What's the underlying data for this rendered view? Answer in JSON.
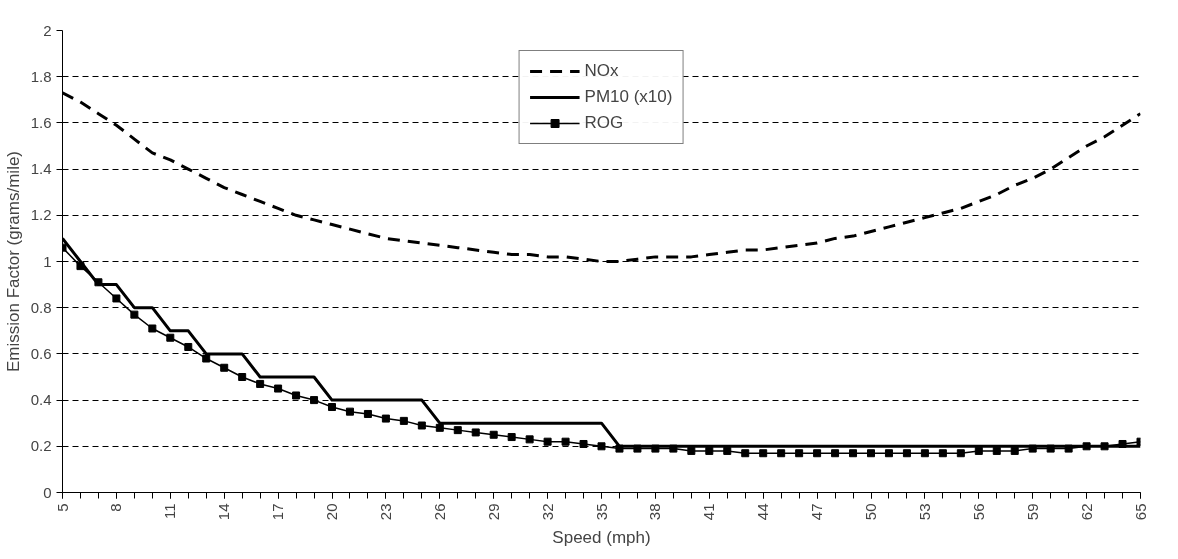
{
  "chart_data": {
    "type": "line",
    "xlabel": "Speed (mph)",
    "ylabel": "Emission Factor (grams/mile)",
    "x": [
      5,
      6,
      7,
      8,
      9,
      10,
      11,
      12,
      13,
      14,
      15,
      16,
      17,
      18,
      19,
      20,
      21,
      22,
      23,
      24,
      25,
      26,
      27,
      28,
      29,
      30,
      31,
      32,
      33,
      34,
      35,
      36,
      37,
      38,
      39,
      40,
      41,
      42,
      43,
      44,
      45,
      46,
      47,
      48,
      49,
      50,
      51,
      52,
      53,
      54,
      55,
      56,
      57,
      58,
      59,
      60,
      61,
      62,
      63,
      64,
      65
    ],
    "xlim": [
      5,
      65
    ],
    "xticks": [
      5,
      8,
      11,
      14,
      17,
      20,
      23,
      26,
      29,
      32,
      35,
      38,
      41,
      44,
      47,
      50,
      53,
      56,
      59,
      62,
      65
    ],
    "ylim": [
      0,
      2
    ],
    "yticks": [
      0,
      0.2,
      0.4,
      0.6,
      0.8,
      1,
      1.2,
      1.4,
      1.6,
      1.8,
      2
    ],
    "grid": "y",
    "legend": "top",
    "series": [
      {
        "name": "NOx",
        "color": "#000000",
        "line_style": "dashed",
        "marker": "none",
        "values": [
          1.73,
          1.69,
          1.64,
          1.59,
          1.53,
          1.47,
          1.44,
          1.4,
          1.36,
          1.32,
          1.29,
          1.26,
          1.23,
          1.2,
          1.18,
          1.16,
          1.14,
          1.12,
          1.1,
          1.09,
          1.08,
          1.07,
          1.06,
          1.05,
          1.04,
          1.03,
          1.03,
          1.02,
          1.02,
          1.01,
          1.0,
          1.0,
          1.01,
          1.02,
          1.02,
          1.02,
          1.03,
          1.04,
          1.05,
          1.05,
          1.06,
          1.07,
          1.08,
          1.1,
          1.11,
          1.13,
          1.15,
          1.17,
          1.19,
          1.21,
          1.23,
          1.26,
          1.29,
          1.33,
          1.36,
          1.4,
          1.45,
          1.5,
          1.54,
          1.59,
          1.64
        ]
      },
      {
        "name": "PM10 (x10)",
        "color": "#000000",
        "line_style": "solid",
        "marker": "none",
        "values": [
          1.1,
          1.0,
          0.9,
          0.9,
          0.8,
          0.8,
          0.7,
          0.7,
          0.6,
          0.6,
          0.6,
          0.5,
          0.5,
          0.5,
          0.5,
          0.4,
          0.4,
          0.4,
          0.4,
          0.4,
          0.4,
          0.3,
          0.3,
          0.3,
          0.3,
          0.3,
          0.3,
          0.3,
          0.3,
          0.3,
          0.3,
          0.2,
          0.2,
          0.2,
          0.2,
          0.2,
          0.2,
          0.2,
          0.2,
          0.2,
          0.2,
          0.2,
          0.2,
          0.2,
          0.2,
          0.2,
          0.2,
          0.2,
          0.2,
          0.2,
          0.2,
          0.2,
          0.2,
          0.2,
          0.2,
          0.2,
          0.2,
          0.2,
          0.2,
          0.2,
          0.2
        ]
      },
      {
        "name": "ROG",
        "color": "#000000",
        "line_style": "solid",
        "marker": "square",
        "values": [
          1.06,
          0.98,
          0.91,
          0.84,
          0.77,
          0.71,
          0.67,
          0.63,
          0.58,
          0.54,
          0.5,
          0.47,
          0.45,
          0.42,
          0.4,
          0.37,
          0.35,
          0.34,
          0.32,
          0.31,
          0.29,
          0.28,
          0.27,
          0.26,
          0.25,
          0.24,
          0.23,
          0.22,
          0.22,
          0.21,
          0.2,
          0.19,
          0.19,
          0.19,
          0.19,
          0.18,
          0.18,
          0.18,
          0.17,
          0.17,
          0.17,
          0.17,
          0.17,
          0.17,
          0.17,
          0.17,
          0.17,
          0.17,
          0.17,
          0.17,
          0.17,
          0.18,
          0.18,
          0.18,
          0.19,
          0.19,
          0.19,
          0.2,
          0.2,
          0.21,
          0.22
        ]
      }
    ]
  }
}
